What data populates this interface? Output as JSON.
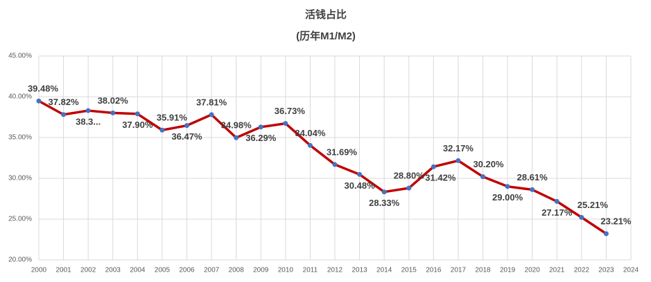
{
  "chart_data": {
    "type": "line",
    "title": "活钱占比",
    "subtitle": "(历年M1/M2)",
    "x": [
      2000,
      2001,
      2002,
      2003,
      2004,
      2005,
      2006,
      2007,
      2008,
      2009,
      2010,
      2011,
      2012,
      2013,
      2014,
      2015,
      2016,
      2017,
      2018,
      2019,
      2020,
      2021,
      2022,
      2023
    ],
    "series": [
      {
        "name": "活钱占比",
        "color": "#c00000",
        "marker_color": "#4472c4",
        "values": [
          39.48,
          37.82,
          38.3,
          38.02,
          37.9,
          35.91,
          36.47,
          37.81,
          34.98,
          36.29,
          36.73,
          34.04,
          31.69,
          30.48,
          28.33,
          28.8,
          31.42,
          32.17,
          30.2,
          29.0,
          28.61,
          27.17,
          25.21,
          23.21
        ],
        "value_labels": [
          "39.48%",
          "37.82%",
          "38.3...",
          "38.02%",
          "37.90%",
          "35.91%",
          "36.47%",
          "37.81%",
          "34.98%",
          "36.29%",
          "36.73%",
          "34.04%",
          "31.69%",
          "30.48%",
          "28.33%",
          "28.80%",
          "31.42%",
          "32.17%",
          "30.20%",
          "29.00%",
          "28.61%",
          "27.17%",
          "25.21%",
          "23.21%"
        ]
      }
    ],
    "xlim": [
      2000,
      2024
    ],
    "xticks": [
      2000,
      2001,
      2002,
      2003,
      2004,
      2005,
      2006,
      2007,
      2008,
      2009,
      2010,
      2011,
      2012,
      2013,
      2014,
      2015,
      2016,
      2017,
      2018,
      2019,
      2020,
      2021,
      2022,
      2023,
      2024
    ],
    "ylim": [
      20,
      45
    ],
    "yticks": [
      {
        "value": 20,
        "label": "20.00%"
      },
      {
        "value": 25,
        "label": "25.00%"
      },
      {
        "value": 30,
        "label": "30.00%"
      },
      {
        "value": 35,
        "label": "35.00%"
      },
      {
        "value": 40,
        "label": "40.00%"
      },
      {
        "value": 45,
        "label": "45.00%"
      }
    ],
    "grid": true
  }
}
